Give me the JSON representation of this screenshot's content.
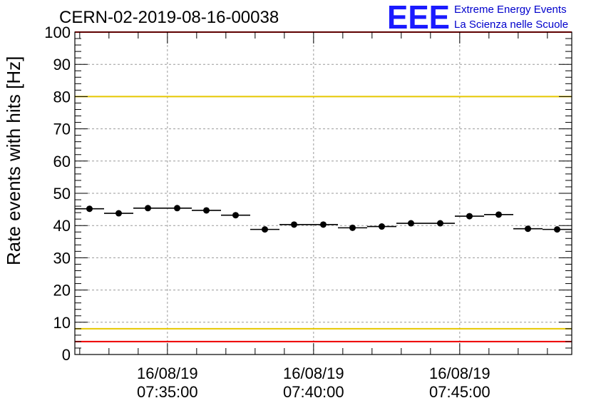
{
  "chart_data": {
    "type": "scatter",
    "title": "CERN-02-2019-08-16-00038",
    "ylabel": "Rate events with hits [Hz]",
    "xlabel": "",
    "ylim": [
      0,
      100
    ],
    "yticks": [
      0,
      10,
      20,
      30,
      40,
      50,
      60,
      70,
      80,
      90,
      100
    ],
    "xlim": [
      "07:31:50",
      "07:48:50"
    ],
    "xticks": [
      {
        "time": "07:35:00",
        "date": "16/08/19",
        "label": "07:35:00"
      },
      {
        "time": "07:40:00",
        "date": "16/08/19",
        "label": "07:40:00"
      },
      {
        "time": "07:45:00",
        "date": "16/08/19",
        "label": "07:45:00"
      }
    ],
    "grid": true,
    "thresholds": [
      {
        "value": 100,
        "color": "#ee0000"
      },
      {
        "value": 80,
        "color": "#e6c800"
      },
      {
        "value": 8,
        "color": "#e6c800"
      },
      {
        "value": 4,
        "color": "#ee0000"
      }
    ],
    "series": [
      {
        "points": [
          {
            "x_start": "07:31:50",
            "x_end": "07:32:50",
            "y": 45.2
          },
          {
            "x_start": "07:32:50",
            "x_end": "07:33:50",
            "y": 43.8
          },
          {
            "x_start": "07:33:50",
            "x_end": "07:34:50",
            "y": 45.4
          },
          {
            "x_start": "07:34:50",
            "x_end": "07:35:50",
            "y": 45.4
          },
          {
            "x_start": "07:35:50",
            "x_end": "07:36:50",
            "y": 44.7
          },
          {
            "x_start": "07:36:50",
            "x_end": "07:37:50",
            "y": 43.2
          },
          {
            "x_start": "07:37:50",
            "x_end": "07:38:50",
            "y": 38.8
          },
          {
            "x_start": "07:38:50",
            "x_end": "07:39:50",
            "y": 40.3
          },
          {
            "x_start": "07:39:50",
            "x_end": "07:40:50",
            "y": 40.3
          },
          {
            "x_start": "07:40:50",
            "x_end": "07:41:50",
            "y": 39.3
          },
          {
            "x_start": "07:41:50",
            "x_end": "07:42:50",
            "y": 39.7
          },
          {
            "x_start": "07:42:50",
            "x_end": "07:43:50",
            "y": 40.7
          },
          {
            "x_start": "07:43:50",
            "x_end": "07:44:50",
            "y": 40.7
          },
          {
            "x_start": "07:44:50",
            "x_end": "07:45:50",
            "y": 42.9
          },
          {
            "x_start": "07:45:50",
            "x_end": "07:46:50",
            "y": 43.4
          },
          {
            "x_start": "07:46:50",
            "x_end": "07:47:50",
            "y": 39.0
          },
          {
            "x_start": "07:47:50",
            "x_end": "07:48:50",
            "y": 38.8
          }
        ],
        "color": "#000000"
      }
    ]
  },
  "logo": {
    "mark": "EEE",
    "line1": "Extreme Energy Events",
    "line2": "La Scienza nelle Scuole",
    "color": "#0000cc"
  }
}
